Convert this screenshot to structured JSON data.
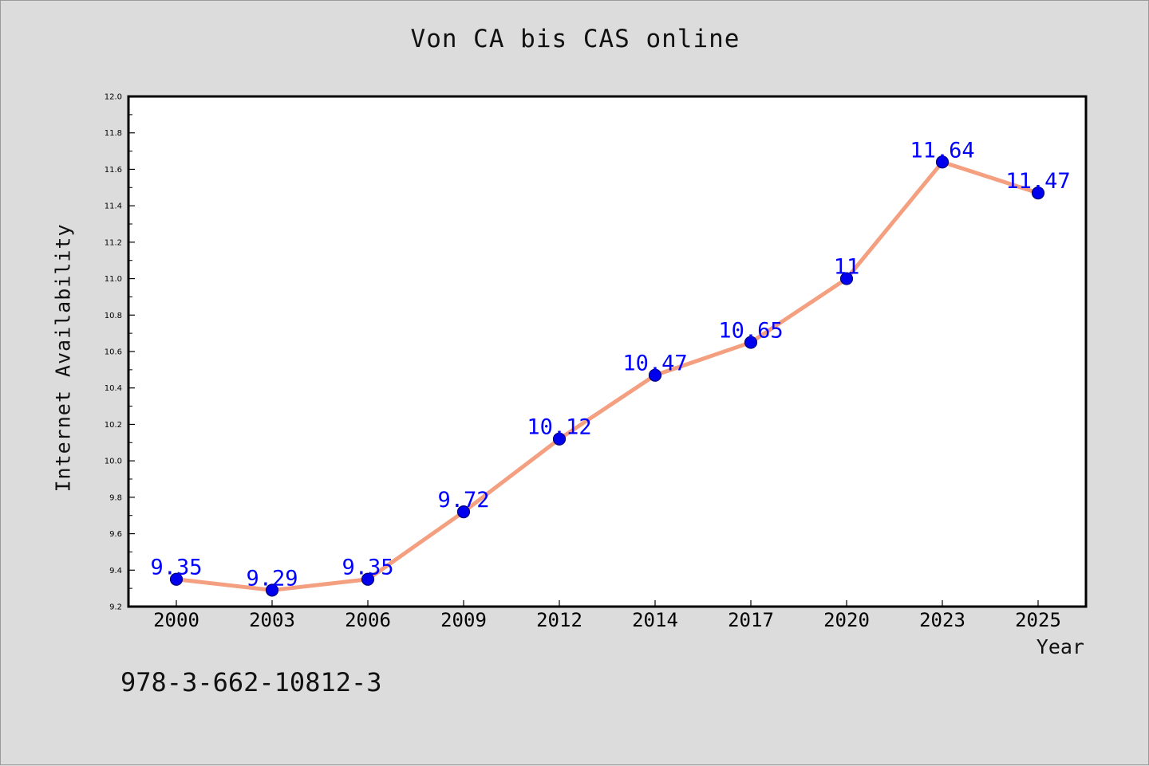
{
  "chart_data": {
    "type": "line",
    "title": "Von CA bis CAS online",
    "xlabel": "Year",
    "ylabel": "Internet Availability",
    "categories": [
      "2000",
      "2003",
      "2006",
      "2009",
      "2012",
      "2014",
      "2017",
      "2020",
      "2023",
      "2025"
    ],
    "values": [
      9.35,
      9.29,
      9.35,
      9.72,
      10.12,
      10.47,
      10.65,
      11,
      11.64,
      11.47
    ],
    "data_labels": [
      "9.35",
      "9.29",
      "9.35",
      "9.72",
      "10.12",
      "10.47",
      "10.65",
      "11",
      "11.64",
      "11.47"
    ],
    "ylim": [
      9.2,
      12.0
    ],
    "yticks": [
      "9.2",
      "9.4",
      "9.6",
      "9.8",
      "10.0",
      "10.2",
      "10.4",
      "10.6",
      "10.8",
      "11.0",
      "11.2",
      "11.4",
      "11.6",
      "11.8",
      "12.0"
    ],
    "grid": false,
    "line_color": "#f4a080",
    "marker_color": "#0000ee",
    "label_color": "#0000ff"
  },
  "caption": "978-3-662-10812-3"
}
